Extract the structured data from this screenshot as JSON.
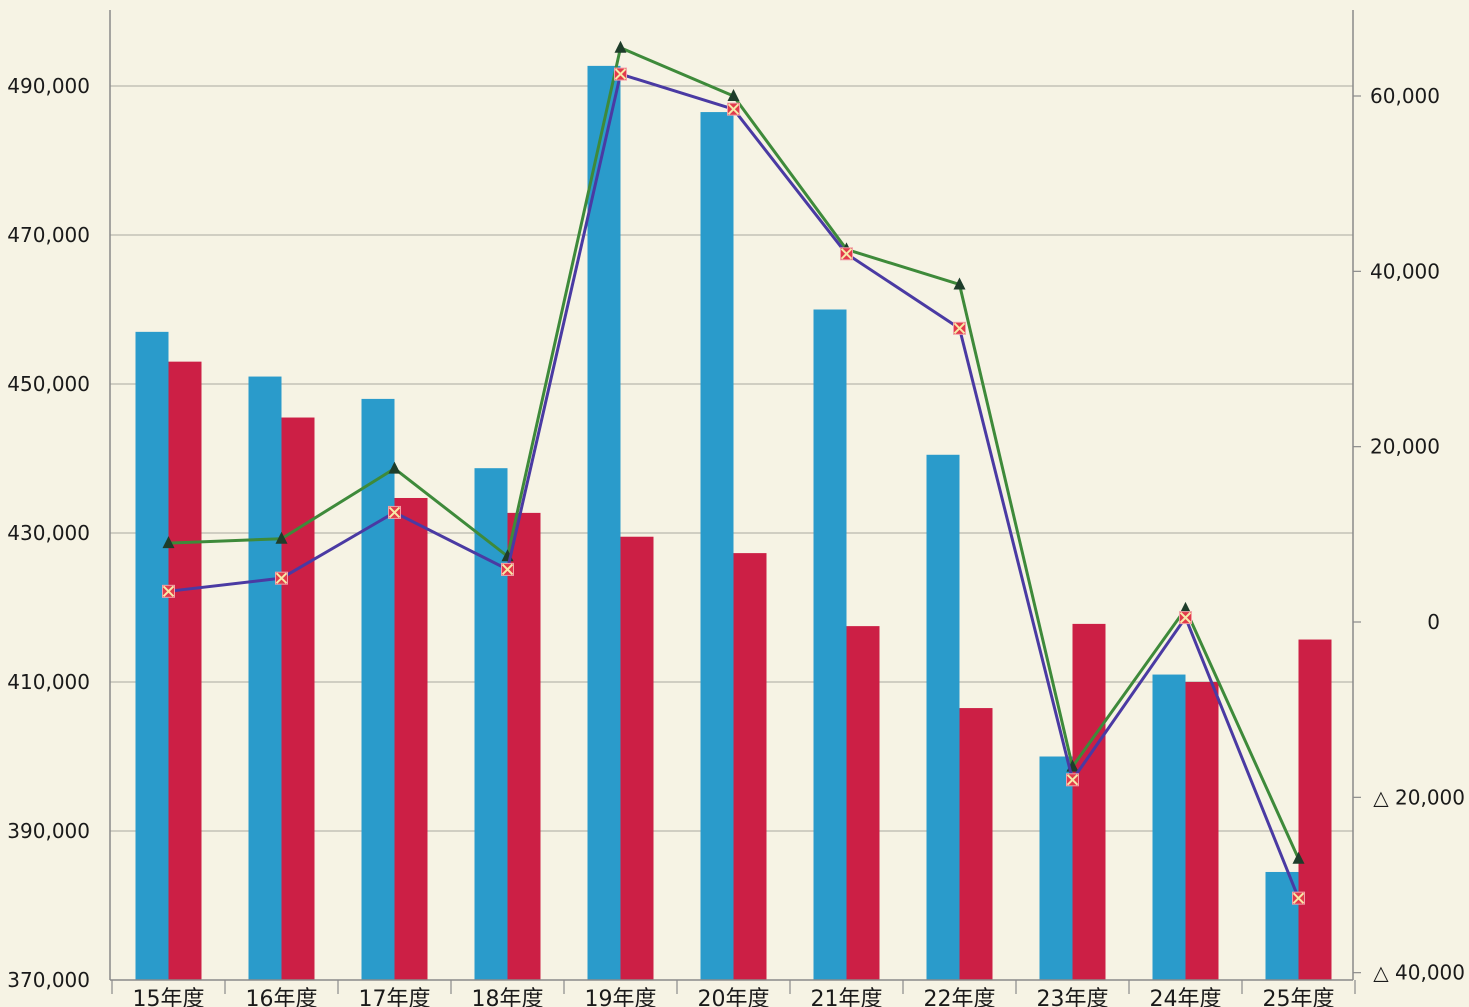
{
  "chart_data": {
    "type": "bar",
    "categories": [
      "15年度",
      "16年度",
      "17年度",
      "18年度",
      "19年度",
      "20年度",
      "21年度",
      "22年度",
      "23年度",
      "24年度",
      "25年度"
    ],
    "y_left": {
      "ylim": [
        370000,
        500000
      ],
      "ticks": [
        370000,
        390000,
        410000,
        430000,
        450000,
        470000,
        490000
      ],
      "tick_labels": [
        "370,000",
        "390,000",
        "410,000",
        "430,000",
        "450,000",
        "470,000",
        "490,000"
      ]
    },
    "y_right": {
      "ylim": [
        -40000,
        70000
      ],
      "ticks": [
        -40000,
        -20000,
        0,
        20000,
        40000,
        60000
      ],
      "tick_labels": [
        "△ 40,000",
        "△ 20,000",
        "0",
        "20,000",
        "40,000",
        "60,000"
      ]
    },
    "grid": true,
    "legend": "none",
    "bar_series": [
      {
        "color": "#2a9bcb",
        "values": [
          457000,
          451000,
          448000,
          438700,
          492700,
          486500,
          460000,
          440500,
          400000,
          411000,
          384500
        ]
      },
      {
        "color": "#cc1f45",
        "values": [
          453000,
          445500,
          434700,
          432700,
          429500,
          427300,
          417500,
          406500,
          417800,
          410000,
          415700
        ]
      }
    ],
    "line_series": [
      {
        "color": "#3e8a3a",
        "marker": "triangle",
        "values": [
          9000,
          9500,
          17500,
          7500,
          65500,
          60000,
          42500,
          38500,
          -16500,
          1500,
          -27000
        ]
      },
      {
        "color": "#4a3aa3",
        "marker": "x-square",
        "values": [
          3500,
          5000,
          12500,
          6000,
          62500,
          58500,
          42000,
          33500,
          -18000,
          500,
          -31500
        ]
      }
    ]
  }
}
